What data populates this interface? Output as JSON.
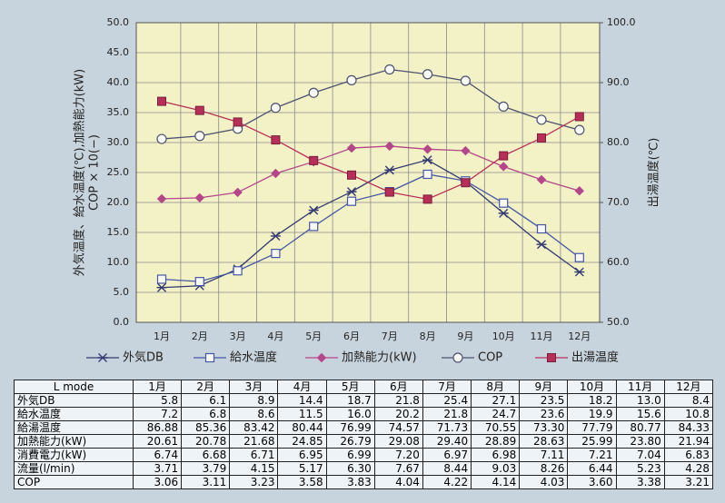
{
  "chart_data": {
    "type": "line",
    "y_label": [
      "外気温度、給水温度(℃),加熱能力(kW)",
      "COP × 10(−)"
    ],
    "y2_label": "出湯温度(℃)",
    "categories": [
      "1月",
      "2月",
      "3月",
      "4月",
      "5月",
      "6月",
      "7月",
      "8月",
      "9月",
      "10月",
      "11月",
      "12月"
    ],
    "ylim": [
      0,
      50
    ],
    "yticks": [
      {
        "value": 0,
        "label": "0.0"
      },
      {
        "value": 5,
        "label": "5.0"
      },
      {
        "value": 10,
        "label": "10.0"
      },
      {
        "value": 15,
        "label": "15.0"
      },
      {
        "value": 20,
        "label": "20.0"
      },
      {
        "value": 25,
        "label": "25.0"
      },
      {
        "value": 30,
        "label": "30.0"
      },
      {
        "value": 35,
        "label": "35.0"
      },
      {
        "value": 40,
        "label": "40.0"
      },
      {
        "value": 45,
        "label": "45.0"
      },
      {
        "value": 50,
        "label": "50.0"
      }
    ],
    "y2lim": [
      50,
      100
    ],
    "y2ticks": [
      {
        "value": 50,
        "label": "50.0"
      },
      {
        "value": 60,
        "label": "60.0"
      },
      {
        "value": 70,
        "label": "70.0"
      },
      {
        "value": 80,
        "label": "80.0"
      },
      {
        "value": 90,
        "label": "90.0"
      },
      {
        "value": 100,
        "label": "100.0"
      }
    ],
    "grid": true,
    "series": [
      {
        "name": "外気DB",
        "color": "#343a72",
        "marker": "asterisk",
        "values": [
          5.8,
          6.1,
          8.9,
          14.4,
          18.7,
          21.8,
          25.4,
          27.1,
          23.5,
          18.2,
          13.0,
          8.4
        ]
      },
      {
        "name": "給水温度",
        "color": "#4657a6",
        "marker": "square-open",
        "values": [
          7.2,
          6.8,
          8.6,
          11.5,
          16.0,
          20.2,
          21.8,
          24.7,
          23.6,
          19.9,
          15.6,
          10.8
        ]
      },
      {
        "name": "加熱能力(kW)",
        "color": "#b4468a",
        "marker": "diamond",
        "values": [
          20.61,
          20.78,
          21.68,
          24.85,
          26.79,
          29.08,
          29.4,
          28.89,
          28.63,
          25.99,
          23.8,
          21.94
        ]
      },
      {
        "name": "COP",
        "color": "#4e5270",
        "marker": "circle-open",
        "values": [
          30.6,
          31.1,
          32.3,
          35.8,
          38.3,
          40.4,
          42.2,
          41.4,
          40.3,
          36.0,
          33.8,
          32.1
        ]
      },
      {
        "name": "出湯温度",
        "color": "#b72f58",
        "marker": "square",
        "axis": "y2",
        "values": [
          86.88,
          85.36,
          83.42,
          80.44,
          76.99,
          74.57,
          71.73,
          70.55,
          73.3,
          77.79,
          80.77,
          84.33
        ]
      }
    ]
  },
  "table": {
    "rows": [
      [
        "L mode",
        "1月",
        "2月",
        "3月",
        "4月",
        "5月",
        "6月",
        "7月",
        "8月",
        "9月",
        "10月",
        "11月",
        "12月"
      ],
      [
        "外気DB",
        "5.8",
        "6.1",
        "8.9",
        "14.4",
        "18.7",
        "21.8",
        "25.4",
        "27.1",
        "23.5",
        "18.2",
        "13.0",
        "8.4"
      ],
      [
        "給水温度",
        "7.2",
        "6.8",
        "8.6",
        "11.5",
        "16.0",
        "20.2",
        "21.8",
        "24.7",
        "23.6",
        "19.9",
        "15.6",
        "10.8"
      ],
      [
        "給湯温度",
        "86.88",
        "85.36",
        "83.42",
        "80.44",
        "76.99",
        "74.57",
        "71.73",
        "70.55",
        "73.30",
        "77.79",
        "80.77",
        "84.33"
      ],
      [
        "加熱能力(kW)",
        "20.61",
        "20.78",
        "21.68",
        "24.85",
        "26.79",
        "29.08",
        "29.40",
        "28.89",
        "28.63",
        "25.99",
        "23.80",
        "21.94"
      ],
      [
        "消費電力(kW)",
        "6.74",
        "6.68",
        "6.71",
        "6.95",
        "6.99",
        "7.20",
        "6.97",
        "6.98",
        "7.11",
        "7.21",
        "7.04",
        "6.83"
      ],
      [
        "流量(l/min)",
        "3.71",
        "3.79",
        "4.15",
        "5.17",
        "6.30",
        "7.67",
        "8.44",
        "9.03",
        "8.26",
        "6.44",
        "5.23",
        "4.28"
      ],
      [
        "COP",
        "3.06",
        "3.11",
        "3.23",
        "3.58",
        "3.83",
        "4.04",
        "4.22",
        "4.14",
        "4.03",
        "3.60",
        "3.38",
        "3.21"
      ]
    ]
  }
}
